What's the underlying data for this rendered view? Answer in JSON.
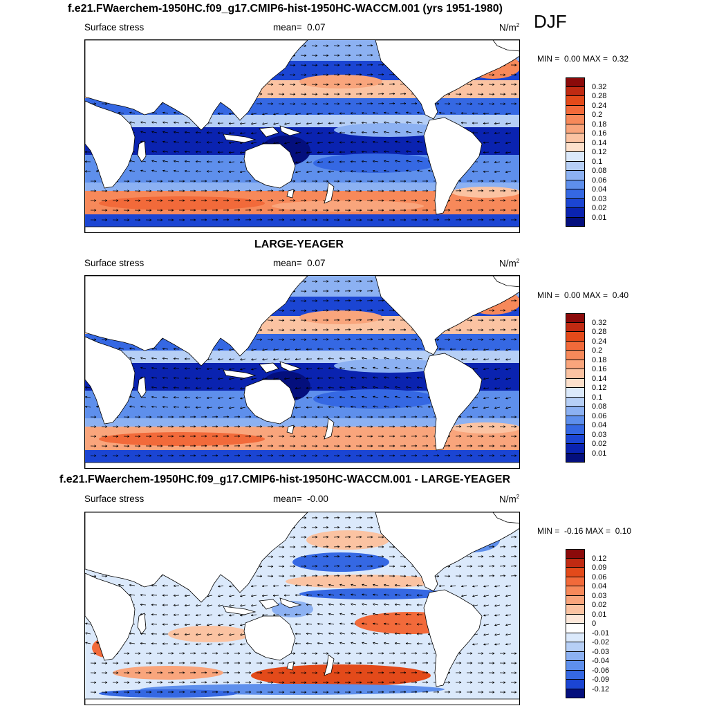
{
  "top_title": "f.e21.FWaerchem-1950HC.f09_g17.CMIP6-hist-1950HC-WACCM.001 (yrs 1951-1980)",
  "season": "DJF",
  "panels": [
    {
      "title": "",
      "variable": "Surface stress",
      "mean_label": "mean=",
      "mean_value": "0.07",
      "units": "N/m",
      "units_exp": "2",
      "min_label": "MIN =",
      "min_value": "0.00",
      "max_label": "MAX =",
      "max_value": "0.32",
      "levels": [
        "0.32",
        "0.28",
        "0.24",
        "0.2",
        "0.18",
        "0.16",
        "0.14",
        "0.12",
        "0.1",
        "0.08",
        "0.06",
        "0.04",
        "0.03",
        "0.02",
        "0.01"
      ],
      "colors": [
        "#8b0a0a",
        "#c02a12",
        "#e34a1a",
        "#f26a3a",
        "#f7895a",
        "#f9a57c",
        "#fbc3a2",
        "#fde0cb",
        "#dbe9fb",
        "#b6cff6",
        "#8cb1f2",
        "#5e8fec",
        "#3568e3",
        "#1b45d3",
        "#0a23b0",
        "#040f7d"
      ],
      "map_style": "climo"
    },
    {
      "title": "LARGE-YEAGER",
      "variable": "Surface stress",
      "mean_label": "mean=",
      "mean_value": "0.07",
      "units": "N/m",
      "units_exp": "2",
      "min_label": "MIN =",
      "min_value": "0.00",
      "max_label": "MAX =",
      "max_value": "0.40",
      "levels": [
        "0.32",
        "0.28",
        "0.24",
        "0.2",
        "0.18",
        "0.16",
        "0.14",
        "0.12",
        "0.1",
        "0.08",
        "0.06",
        "0.04",
        "0.03",
        "0.02",
        "0.01"
      ],
      "colors": [
        "#8b0a0a",
        "#c02a12",
        "#e34a1a",
        "#f26a3a",
        "#f7895a",
        "#f9a57c",
        "#fbc3a2",
        "#fde0cb",
        "#dbe9fb",
        "#b6cff6",
        "#8cb1f2",
        "#5e8fec",
        "#3568e3",
        "#1b45d3",
        "#0a23b0",
        "#040f7d"
      ],
      "map_style": "climo"
    },
    {
      "title": "f.e21.FWaerchem-1950HC.f09_g17.CMIP6-hist-1950HC-WACCM.001 - LARGE-YEAGER",
      "variable": "Surface stress",
      "mean_label": "mean=",
      "mean_value": "-0.00",
      "units": "N/m",
      "units_exp": "2",
      "min_label": "MIN =",
      "min_value": "-0.16",
      "max_label": "MAX =",
      "max_value": "0.10",
      "levels": [
        "0.12",
        "0.09",
        "0.06",
        "0.04",
        "0.03",
        "0.02",
        "0.01",
        "0",
        "-0.01",
        "-0.02",
        "-0.03",
        "-0.04",
        "-0.06",
        "-0.09",
        "-0.12"
      ],
      "colors": [
        "#8b0a0a",
        "#c02a12",
        "#e34a1a",
        "#f26a3a",
        "#f7895a",
        "#f9a57c",
        "#fbc3a2",
        "#fde8da",
        "#ffffff",
        "#dbe9fb",
        "#b6cff6",
        "#8cb1f2",
        "#5e8fec",
        "#3568e3",
        "#1b45d3",
        "#040f7d"
      ],
      "map_style": "diff"
    }
  ]
}
